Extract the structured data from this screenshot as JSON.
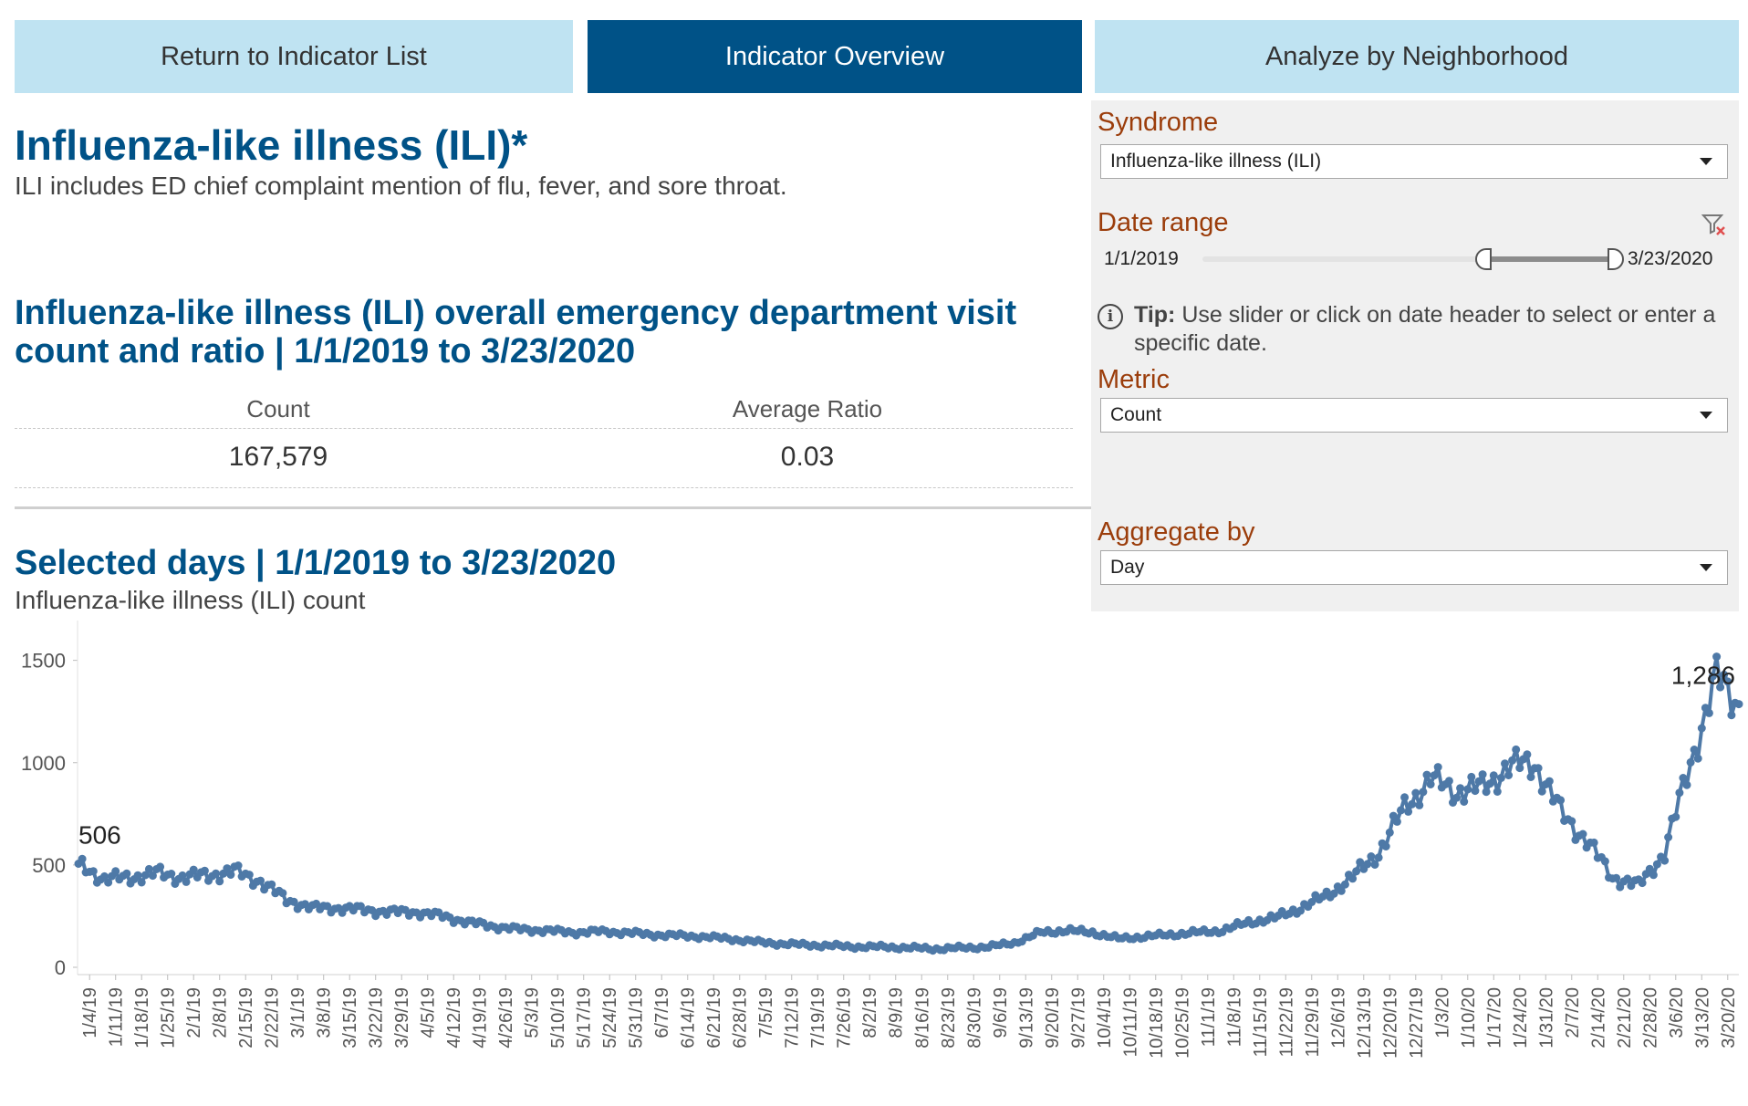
{
  "nav": {
    "return_label": "Return to Indicator List",
    "overview_label": "Indicator Overview",
    "neighborhood_label": "Analyze by Neighborhood"
  },
  "header": {
    "title": "Influenza-like illness (ILI)*",
    "description": "ILI includes ED chief complaint mention of flu, fever, and sore throat."
  },
  "summary": {
    "title": "Influenza-like illness (ILI) overall emergency department visit count and ratio | 1/1/2019 to 3/23/2020",
    "count_label": "Count",
    "count_value": "167,579",
    "ratio_label": "Average Ratio",
    "ratio_value": "0.03"
  },
  "filters": {
    "syndrome_label": "Syndrome",
    "syndrome_value": "Influenza-like illness (ILI)",
    "date_range_label": "Date range",
    "date_start": "1/1/2019",
    "date_end": "3/23/2020",
    "tip_bold": "Tip:",
    "tip_text": "Use slider or click on date header to select or enter a specific date.",
    "metric_label": "Metric",
    "metric_value": "Count",
    "aggregate_label": "Aggregate by",
    "aggregate_value": "Day"
  },
  "chart_header": {
    "title": "Selected days | 1/1/2019 to 3/23/2020",
    "subtitle": "Influenza-like illness (ILI) count"
  },
  "colors": {
    "line": "#4e79a7",
    "title": "#005287",
    "filter_label": "#9b3d0b"
  },
  "chart_data": {
    "type": "line",
    "title": "Selected days | 1/1/2019 to 3/23/2020",
    "ylabel": "",
    "xlabel": "",
    "ylim": [
      0,
      1650
    ],
    "yticks": [
      0,
      500,
      1000,
      1500
    ],
    "x_start": "1/1/2019",
    "x_end": "3/23/2020",
    "xtick_labels": [
      "1/4/19",
      "1/11/19",
      "1/18/19",
      "1/25/19",
      "2/1/19",
      "2/8/19",
      "2/15/19",
      "2/22/19",
      "3/1/19",
      "3/8/19",
      "3/15/19",
      "3/22/19",
      "3/29/19",
      "4/5/19",
      "4/12/19",
      "4/19/19",
      "4/26/19",
      "5/3/19",
      "5/10/19",
      "5/17/19",
      "5/24/19",
      "5/31/19",
      "6/7/19",
      "6/14/19",
      "6/21/19",
      "6/28/19",
      "7/5/19",
      "7/12/19",
      "7/19/19",
      "7/26/19",
      "8/2/19",
      "8/9/19",
      "8/16/19",
      "8/23/19",
      "8/30/19",
      "9/6/19",
      "9/13/19",
      "9/20/19",
      "9/27/19",
      "10/4/19",
      "10/11/19",
      "10/18/19",
      "10/25/19",
      "11/1/19",
      "11/8/19",
      "11/15/19",
      "11/22/19",
      "11/29/19",
      "12/6/19",
      "12/13/19",
      "12/20/19",
      "12/27/19",
      "1/3/20",
      "1/10/20",
      "1/17/20",
      "1/24/20",
      "1/31/20",
      "2/7/20",
      "2/14/20",
      "2/21/20",
      "2/28/20",
      "3/6/20",
      "3/13/20",
      "3/20/20"
    ],
    "series": [
      {
        "name": "",
        "weekly_anchors": [
          [
            "1/1/2019",
            506
          ],
          [
            "1/8/2019",
            430
          ],
          [
            "1/15/2019",
            440
          ],
          [
            "1/22/2019",
            460
          ],
          [
            "1/29/2019",
            440
          ],
          [
            "2/5/2019",
            450
          ],
          [
            "2/12/2019",
            470
          ],
          [
            "2/19/2019",
            420
          ],
          [
            "2/26/2019",
            330
          ],
          [
            "3/5/2019",
            290
          ],
          [
            "3/12/2019",
            290
          ],
          [
            "3/19/2019",
            280
          ],
          [
            "3/26/2019",
            270
          ],
          [
            "4/2/2019",
            270
          ],
          [
            "4/9/2019",
            250
          ],
          [
            "4/16/2019",
            220
          ],
          [
            "4/23/2019",
            200
          ],
          [
            "4/30/2019",
            185
          ],
          [
            "5/7/2019",
            180
          ],
          [
            "5/14/2019",
            170
          ],
          [
            "5/21/2019",
            175
          ],
          [
            "5/28/2019",
            170
          ],
          [
            "6/4/2019",
            160
          ],
          [
            "6/11/2019",
            155
          ],
          [
            "6/18/2019",
            150
          ],
          [
            "6/25/2019",
            140
          ],
          [
            "7/2/2019",
            125
          ],
          [
            "7/9/2019",
            115
          ],
          [
            "7/16/2019",
            110
          ],
          [
            "7/23/2019",
            105
          ],
          [
            "7/30/2019",
            100
          ],
          [
            "8/6/2019",
            100
          ],
          [
            "8/13/2019",
            95
          ],
          [
            "8/20/2019",
            90
          ],
          [
            "8/27/2019",
            95
          ],
          [
            "9/3/2019",
            100
          ],
          [
            "9/10/2019",
            120
          ],
          [
            "9/17/2019",
            170
          ],
          [
            "9/24/2019",
            180
          ],
          [
            "10/1/2019",
            170
          ],
          [
            "10/8/2019",
            140
          ],
          [
            "10/15/2019",
            150
          ],
          [
            "10/22/2019",
            160
          ],
          [
            "10/29/2019",
            170
          ],
          [
            "11/5/2019",
            180
          ],
          [
            "11/12/2019",
            220
          ],
          [
            "11/19/2019",
            240
          ],
          [
            "11/26/2019",
            290
          ],
          [
            "12/3/2019",
            350
          ],
          [
            "12/10/2019",
            440
          ],
          [
            "12/17/2019",
            560
          ],
          [
            "12/24/2019",
            780
          ],
          [
            "12/31/2019",
            920
          ],
          [
            "1/7/2020",
            860
          ],
          [
            "1/14/2020",
            880
          ],
          [
            "1/21/2020",
            980
          ],
          [
            "1/28/2020",
            1000
          ],
          [
            "2/4/2020",
            760
          ],
          [
            "2/11/2020",
            620
          ],
          [
            "2/18/2020",
            440
          ],
          [
            "2/25/2020",
            400
          ],
          [
            "3/3/2020",
            560
          ],
          [
            "3/10/2020",
            1000
          ],
          [
            "3/17/2020",
            1420
          ],
          [
            "3/23/2020",
            1286
          ]
        ]
      }
    ],
    "data_labels": [
      {
        "date": "1/1/2019",
        "value": 506,
        "text": "506"
      },
      {
        "date": "3/23/2020",
        "value": 1286,
        "text": "1,286"
      }
    ]
  }
}
